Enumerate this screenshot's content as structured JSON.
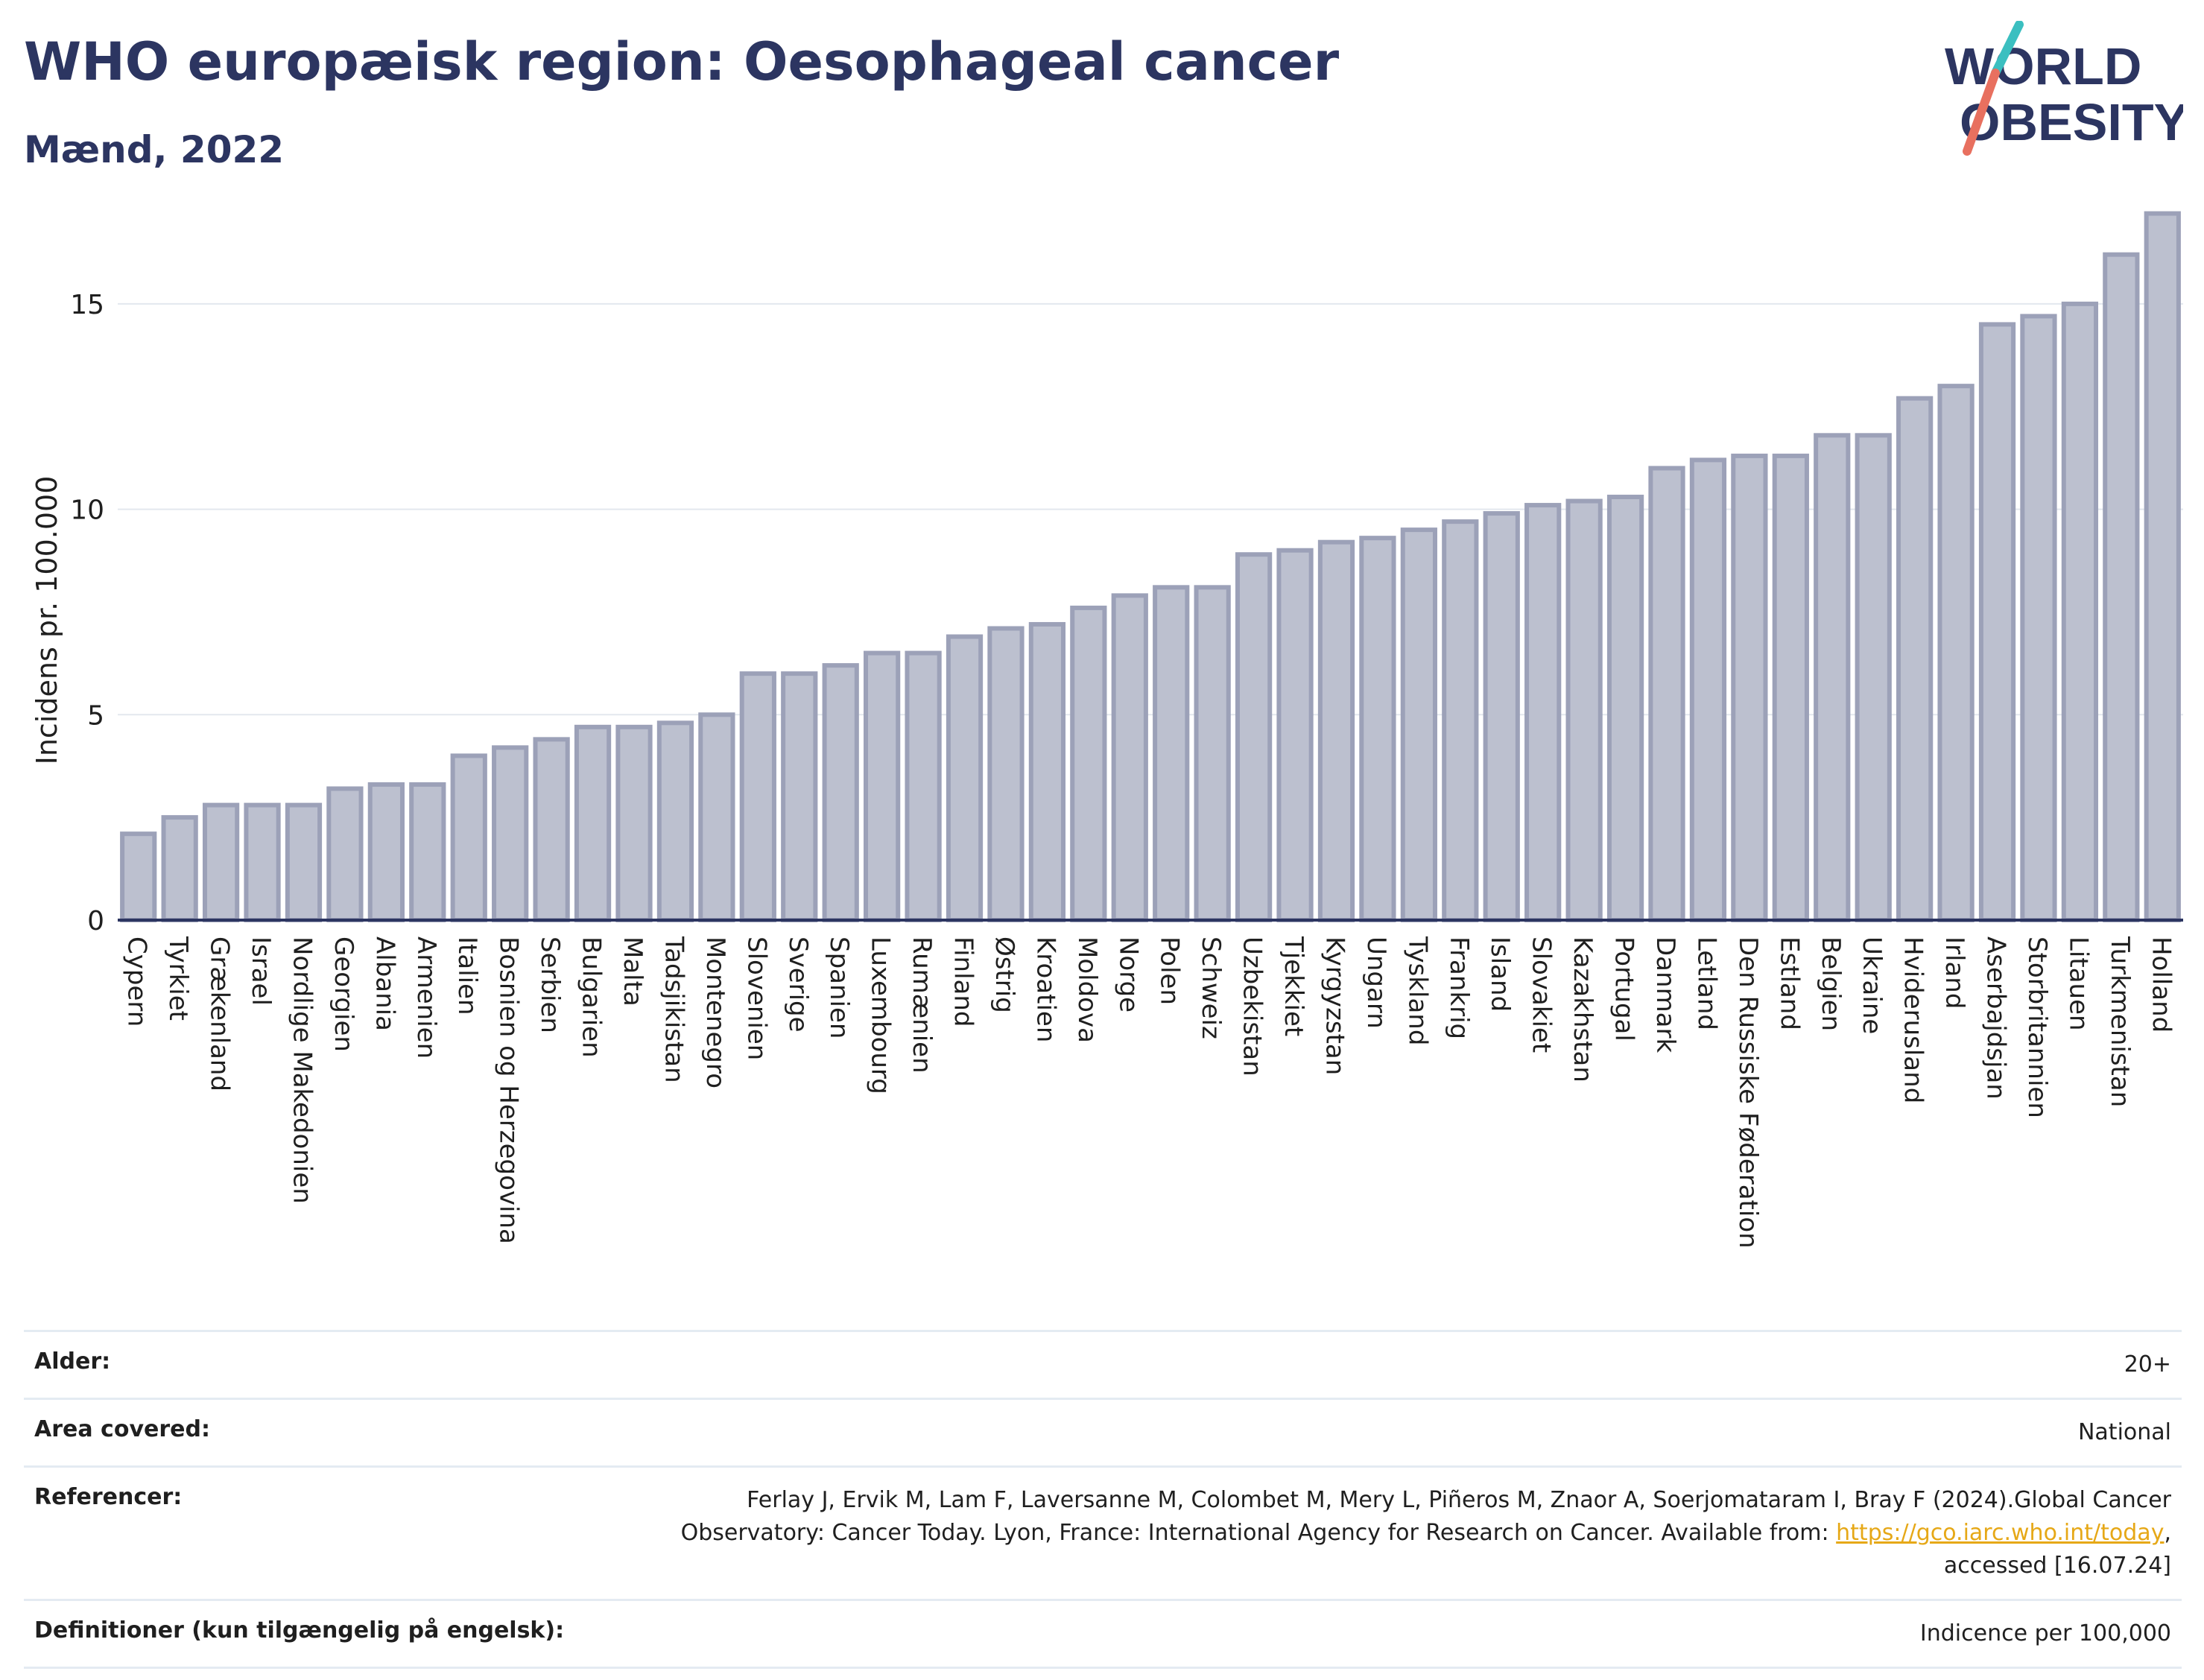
{
  "header": {
    "title": "WHO europæisk region: Oesophageal cancer",
    "subtitle": "Mænd, 2022"
  },
  "logo": {
    "line1": "WORLD",
    "line2": "OBESITY",
    "colors": {
      "text": "#2c3561",
      "slash_teal": "#3bbfc0",
      "slash_coral": "#e8705f"
    }
  },
  "chart_data": {
    "type": "bar",
    "ylabel": "Incidens pr. 100.000",
    "xlabel": "",
    "ylim": [
      0,
      17.5
    ],
    "yticks": [
      0,
      5,
      10,
      15
    ],
    "grid": true,
    "colors": {
      "bar_fill": "#bcc0cf",
      "bar_stroke": "#9ca1b8",
      "axis": "#2c3561",
      "grid": "#e3e8ee"
    },
    "categories": [
      "Cypern",
      "Tyrkiet",
      "Grækenland",
      "Israel",
      "Nordlige Makedonien",
      "Georgien",
      "Albania",
      "Armenien",
      "Italien",
      "Bosnien og Herzegovina",
      "Serbien",
      "Bulgarien",
      "Malta",
      "Tadsjikistan",
      "Montenegro",
      "Slovenien",
      "Sverige",
      "Spanien",
      "Luxembourg",
      "Rumænien",
      "Finland",
      "Østrig",
      "Kroatien",
      "Moldova",
      "Norge",
      "Polen",
      "Schweiz",
      "Uzbekistan",
      "Tjekkiet",
      "Kyrgyzstan",
      "Ungarn",
      "Tyskland",
      "Frankrig",
      "Island",
      "Slovakiet",
      "Kazakhstan",
      "Portugal",
      "Danmark",
      "Letland",
      "Den Russiske Føderation",
      "Estland",
      "Belgien",
      "Ukraine",
      "Hviderusland",
      "Irland",
      "Aserbajdsjan",
      "Storbritannien",
      "Litauen",
      "Turkmenistan",
      "Holland"
    ],
    "values": [
      2.1,
      2.5,
      2.8,
      2.8,
      2.8,
      3.2,
      3.3,
      3.3,
      4.0,
      4.2,
      4.4,
      4.7,
      4.7,
      4.8,
      5.0,
      6.0,
      6.0,
      6.2,
      6.5,
      6.5,
      6.9,
      7.1,
      7.2,
      7.6,
      7.9,
      8.1,
      8.1,
      8.9,
      9.0,
      9.2,
      9.3,
      9.5,
      9.7,
      9.9,
      10.1,
      10.2,
      10.3,
      11.0,
      11.2,
      11.3,
      11.3,
      11.8,
      11.8,
      12.7,
      13.0,
      14.5,
      14.7,
      15.0,
      16.2,
      17.2
    ]
  },
  "meta": {
    "age": {
      "label": "Alder:",
      "value": "20+"
    },
    "area": {
      "label": "Area covered:",
      "value": "National"
    },
    "refs": {
      "label": "Referencer:",
      "line1": "Ferlay J, Ervik M, Lam F, Laversanne M, Colombet M, Mery L, Piñeros M, Znaor A, Soerjomataram I, Bray F (2024).Global Cancer",
      "line2_prefix": "Observatory: Cancer Today. Lyon, France: International Agency for Research on Cancer. Available from: ",
      "link": "https://gco.iarc.who.int/today",
      "line2_suffix": ",",
      "line3": "accessed [16.07.24]"
    },
    "defs": {
      "label": "Definitioner (kun tilgængelig på engelsk):",
      "value": "Indicence per 100,000"
    }
  }
}
